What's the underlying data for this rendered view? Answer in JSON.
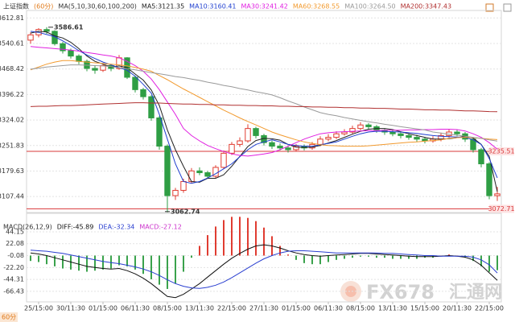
{
  "chart_data": [
    {
      "type": "candlestick",
      "title": "上证指数",
      "period": "(60分)",
      "ma_label": "MA(5,10,30,60,100,200)",
      "tab": "60分",
      "watermark": {
        "brand": "FX678",
        "name": "汇通网"
      },
      "categories": [
        null,
        "25/15:00",
        null,
        null,
        null,
        "30/11:30",
        null,
        null,
        null,
        "01/15:00",
        null,
        null,
        null,
        "06/11:30",
        null,
        null,
        null,
        "08/15:00",
        null,
        null,
        null,
        "13/11:30",
        null,
        null,
        null,
        "22/15:00",
        null,
        null,
        null,
        "27/11:30",
        null,
        null,
        null,
        "01/15:00",
        null,
        null,
        null,
        "06/11:30",
        null,
        null,
        null,
        "08/15:00",
        null,
        null,
        null,
        "13/11:30",
        null,
        null,
        null,
        "15/15:00",
        null,
        null,
        null,
        "20/11:30",
        null,
        null,
        null,
        "22/15:00",
        null
      ],
      "open": [
        3550,
        3565,
        3580,
        3575,
        3540,
        3520,
        3505,
        3490,
        3470,
        3465,
        3478,
        3470,
        3500,
        3445,
        3410,
        3390,
        3330,
        3250,
        3110,
        3125,
        3150,
        3180,
        3175,
        3165,
        3190,
        3230,
        3255,
        3265,
        3300,
        3280,
        3260,
        3250,
        3245,
        3240,
        3250,
        3245,
        3255,
        3270,
        3275,
        3285,
        3290,
        3300,
        3310,
        3305,
        3295,
        3290,
        3285,
        3280,
        3275,
        3270,
        3265,
        3270,
        3280,
        3290,
        3285,
        3270,
        3240,
        3200,
        3110
      ],
      "close": [
        3565,
        3580,
        3575,
        3540,
        3520,
        3505,
        3490,
        3470,
        3465,
        3478,
        3470,
        3500,
        3445,
        3410,
        3390,
        3330,
        3250,
        3110,
        3125,
        3150,
        3180,
        3175,
        3165,
        3190,
        3230,
        3255,
        3265,
        3300,
        3280,
        3260,
        3250,
        3245,
        3240,
        3250,
        3245,
        3255,
        3270,
        3275,
        3285,
        3290,
        3300,
        3310,
        3305,
        3295,
        3290,
        3285,
        3280,
        3275,
        3270,
        3265,
        3270,
        3280,
        3290,
        3285,
        3270,
        3240,
        3200,
        3110,
        3115
      ],
      "high": [
        3572,
        3584,
        3586.61,
        3578,
        3545,
        3526,
        3510,
        3495,
        3478,
        3484,
        3482,
        3508,
        3502,
        3450,
        3415,
        3394,
        3335,
        3255,
        3132,
        3158,
        3188,
        3190,
        3180,
        3196,
        3238,
        3262,
        3275,
        3312,
        3305,
        3285,
        3266,
        3258,
        3252,
        3256,
        3255,
        3262,
        3278,
        3284,
        3292,
        3298,
        3308,
        3318,
        3315,
        3310,
        3300,
        3296,
        3292,
        3286,
        3282,
        3276,
        3278,
        3288,
        3298,
        3296,
        3290,
        3274,
        3245,
        3205,
        3135
      ],
      "low": [
        3540,
        3558,
        3568,
        3535,
        3512,
        3498,
        3482,
        3462,
        3455,
        3460,
        3462,
        3466,
        3440,
        3402,
        3382,
        3322,
        3240,
        3062.74,
        3098,
        3118,
        3145,
        3168,
        3158,
        3160,
        3185,
        3225,
        3248,
        3260,
        3272,
        3252,
        3242,
        3238,
        3232,
        3235,
        3238,
        3240,
        3250,
        3264,
        3270,
        3280,
        3285,
        3295,
        3298,
        3288,
        3282,
        3278,
        3272,
        3268,
        3262,
        3258,
        3260,
        3264,
        3274,
        3278,
        3262,
        3232,
        3190,
        3100,
        3095
      ],
      "up_color": "#e03c31",
      "down_color": "#2f9e44",
      "series": [
        {
          "name": "MA5:3121.35",
          "color": "#222222",
          "values": [
            3570,
            3575,
            3573,
            3562,
            3556,
            3544,
            3526,
            3505,
            3490,
            3482,
            3474,
            3477,
            3472,
            3454,
            3437,
            3409,
            3365,
            3296,
            3240,
            3193,
            3150,
            3148,
            3159,
            3159,
            3169,
            3193,
            3221,
            3249,
            3266,
            3272,
            3271,
            3267,
            3255,
            3247,
            3246,
            3247,
            3252,
            3259,
            3266,
            3275,
            3284,
            3292,
            3298,
            3300,
            3300,
            3297,
            3291,
            3285,
            3280,
            3275,
            3270,
            3270,
            3271,
            3274,
            3278,
            3273,
            3255,
            3221,
            3121.35
          ]
        },
        {
          "name": "MA10:3160.41",
          "color": "#1f3fcf",
          "values": [
            3575,
            3572,
            3566,
            3560,
            3548,
            3535,
            3520,
            3508,
            3498,
            3488,
            3480,
            3472,
            3465,
            3448,
            3425,
            3400,
            3340,
            3270,
            3200,
            3150,
            3145,
            3150,
            3160,
            3172,
            3186,
            3200,
            3220,
            3240,
            3255,
            3262,
            3268,
            3262,
            3255,
            3252,
            3250,
            3250,
            3254,
            3258,
            3262,
            3270,
            3278,
            3285,
            3290,
            3292,
            3292,
            3291,
            3290,
            3288,
            3286,
            3283,
            3280,
            3278,
            3277,
            3276,
            3275,
            3268,
            3255,
            3215,
            3160.41
          ]
        },
        {
          "name": "MA30:3241.42",
          "color": "#e020e0",
          "values": [
            3532,
            3530,
            3528,
            3526,
            3524,
            3522,
            3519,
            3515,
            3512,
            3508,
            3505,
            3500,
            3490,
            3478,
            3462,
            3440,
            3410,
            3375,
            3340,
            3300,
            3280,
            3265,
            3252,
            3243,
            3235,
            3228,
            3224,
            3222,
            3225,
            3228,
            3232,
            3240,
            3250,
            3260,
            3270,
            3278,
            3285,
            3288,
            3290,
            3291,
            3292,
            3293,
            3294,
            3294,
            3295,
            3295,
            3295,
            3296,
            3296,
            3297,
            3297,
            3298,
            3298,
            3297,
            3293,
            3285,
            3275,
            3260,
            3241.42
          ]
        },
        {
          "name": "MA60:3268.55",
          "color": "#f29a2e",
          "values": [
            3466,
            3474,
            3482,
            3488,
            3492,
            3492,
            3490,
            3488,
            3486,
            3484,
            3482,
            3480,
            3477,
            3473,
            3468,
            3462,
            3450,
            3438,
            3425,
            3412,
            3400,
            3388,
            3376,
            3364,
            3352,
            3341,
            3330,
            3320,
            3310,
            3300,
            3290,
            3282,
            3275,
            3268,
            3262,
            3258,
            3254,
            3252,
            3251,
            3250,
            3250,
            3250,
            3251,
            3253,
            3255,
            3257,
            3259,
            3261,
            3262,
            3264,
            3266,
            3268,
            3272,
            3274,
            3275,
            3274,
            3272,
            3270,
            3268.55
          ]
        },
        {
          "name": "MA100:3264.50",
          "color": "#9a9a9a",
          "values": [
            3468,
            3471,
            3474,
            3476,
            3478,
            3480,
            3480,
            3479,
            3478,
            3477,
            3475,
            3472,
            3469,
            3466,
            3462,
            3458,
            3455,
            3451,
            3447,
            3444,
            3440,
            3436,
            3431,
            3427,
            3422,
            3418,
            3413,
            3409,
            3404,
            3400,
            3395,
            3387,
            3378,
            3370,
            3361,
            3353,
            3345,
            3340,
            3336,
            3331,
            3327,
            3323,
            3319,
            3316,
            3312,
            3309,
            3305,
            3302,
            3299,
            3296,
            3290,
            3287,
            3284,
            3281,
            3278,
            3275,
            3272,
            3268,
            3264.5
          ]
        },
        {
          "name": "MA200:3347.43",
          "color": "#b03030",
          "values": [
            3362,
            3363,
            3363,
            3364,
            3365,
            3365,
            3366,
            3367,
            3368,
            3369,
            3370,
            3371,
            3372,
            3373,
            3373,
            3372,
            3372,
            3371,
            3370,
            3369,
            3369,
            3368,
            3368,
            3367,
            3367,
            3366,
            3366,
            3365,
            3365,
            3364,
            3364,
            3363,
            3363,
            3362,
            3362,
            3361,
            3361,
            3360,
            3360,
            3359,
            3359,
            3358,
            3358,
            3357,
            3357,
            3356,
            3355,
            3355,
            3354,
            3353,
            3353,
            3352,
            3352,
            3351,
            3350,
            3350,
            3349,
            3348,
            3347.43
          ]
        }
      ],
      "hlines": [
        3235.51,
        3072.71
      ],
      "hline_color": "#d9383a",
      "ylim": [
        3060,
        3634
      ],
      "yticks": [
        3612.81,
        3540.61,
        3468.42,
        3396.22,
        3324.02,
        3251.83,
        3179.63,
        3107.44
      ],
      "grid": true
    },
    {
      "type": "combo",
      "indicator": "MACD(26,12,9)",
      "series": [
        {
          "name": "DIFF:-45.89",
          "color": "#111111",
          "mark": "line",
          "values": [
            5,
            3,
            0,
            -4,
            -8,
            -12,
            -16,
            -20,
            -22,
            -24,
            -25,
            -24,
            -28,
            -34,
            -42,
            -52,
            -64,
            -76,
            -78,
            -72,
            -62,
            -52,
            -40,
            -28,
            -16,
            -5,
            4,
            12,
            18,
            20,
            18,
            14,
            9,
            5,
            2,
            0,
            -1,
            0,
            1,
            2,
            3,
            4,
            4,
            3,
            2,
            1,
            0,
            -1,
            -2,
            -2,
            -2,
            -1,
            0,
            -1,
            -3,
            -8,
            -18,
            -32,
            -45.89
          ]
        },
        {
          "name": "DEA:-32.34",
          "color": "#2a3fd0",
          "mark": "line",
          "values": [
            10,
            9,
            8,
            6,
            4,
            1,
            -2,
            -5,
            -8,
            -11,
            -13,
            -15,
            -18,
            -21,
            -25,
            -30,
            -37,
            -45,
            -52,
            -57,
            -60,
            -61,
            -59,
            -55,
            -49,
            -41,
            -32,
            -23,
            -14,
            -6,
            0,
            5,
            8,
            9,
            9,
            8,
            7,
            6,
            5,
            5,
            5,
            5,
            5,
            5,
            4,
            4,
            3,
            2,
            1,
            0,
            0,
            -1,
            -1,
            -1,
            -1,
            -3,
            -8,
            -17,
            -32.34
          ]
        },
        {
          "name": "MACD:-27.12",
          "color": "#cc33cc",
          "mark": "bar",
          "up_color": "#e03c31",
          "down_color": "#3aa24c",
          "values": [
            -10,
            -12,
            -16,
            -20,
            -24,
            -26,
            -28,
            -30,
            -28,
            -26,
            -24,
            -18,
            -20,
            -26,
            -34,
            -44,
            -54,
            -62,
            -52,
            -30,
            -4,
            18,
            38,
            54,
            66,
            72,
            72,
            70,
            64,
            52,
            36,
            18,
            2,
            -8,
            -14,
            -16,
            -16,
            -12,
            -8,
            -6,
            -4,
            -2,
            -2,
            -4,
            -4,
            -6,
            -6,
            -6,
            -6,
            -4,
            -4,
            0,
            2,
            0,
            -4,
            -10,
            -20,
            -30,
            -27.12
          ]
        }
      ],
      "ylim": [
        -86,
        80
      ],
      "yticks": [
        44.15,
        22.08,
        -0.08,
        {
          "value": -22.2,
          "label": "-22.20"
        },
        -44.31,
        -66.43
      ],
      "grid": true
    }
  ]
}
